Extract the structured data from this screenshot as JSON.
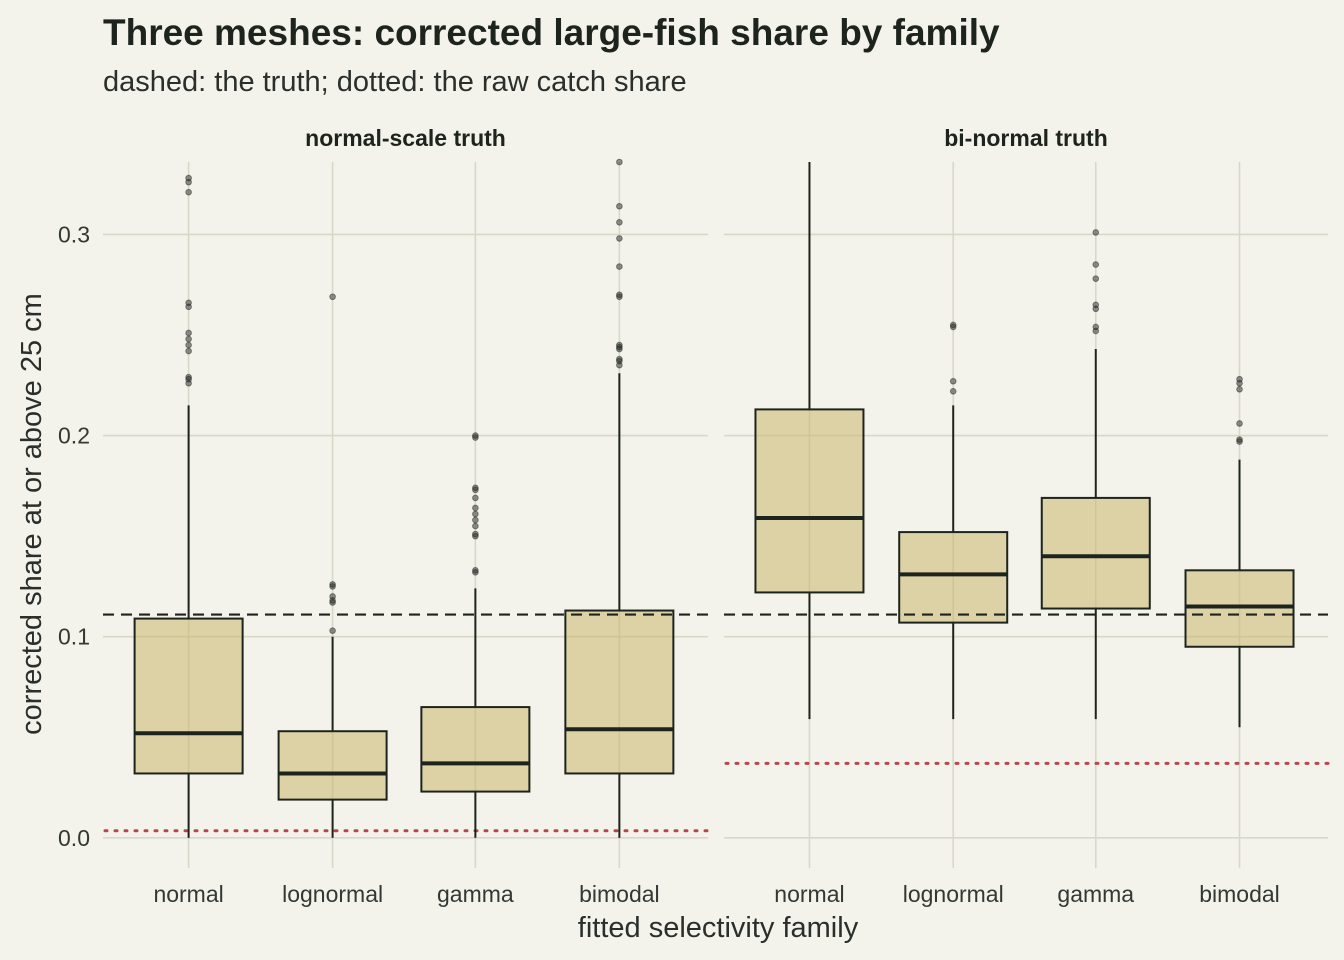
{
  "chart_data": {
    "type": "box",
    "title": "Three meshes: corrected large-fish share by family",
    "subtitle": "dashed: the truth; dotted: the raw catch share",
    "xlabel": "fitted selectivity family",
    "ylabel": "corrected share at or above 25 cm",
    "ylim": [
      -0.015,
      0.336
    ],
    "yticks": [
      0.0,
      0.1,
      0.2,
      0.3
    ],
    "ytick_labels": [
      "0.0",
      "0.1",
      "0.2",
      "0.3"
    ],
    "categories": [
      "normal",
      "lognormal",
      "gamma",
      "bimodal"
    ],
    "grid": true,
    "panels": [
      {
        "title": "normal-scale truth",
        "truth": 0.111,
        "raw_share": 0.0035,
        "boxes": [
          {
            "category": "normal",
            "whisker_low": 0.0,
            "q1": 0.032,
            "median": 0.052,
            "q3": 0.109,
            "whisker_high": 0.215,
            "outliers": [
              0.226,
              0.228,
              0.229,
              0.242,
              0.245,
              0.248,
              0.251,
              0.264,
              0.266,
              0.321,
              0.326,
              0.328
            ]
          },
          {
            "category": "lognormal",
            "whisker_low": 0.0,
            "q1": 0.019,
            "median": 0.032,
            "q3": 0.053,
            "whisker_high": 0.1,
            "outliers": [
              0.103,
              0.117,
              0.118,
              0.12,
              0.125,
              0.126,
              0.269
            ]
          },
          {
            "category": "gamma",
            "whisker_low": 0.0,
            "q1": 0.023,
            "median": 0.037,
            "q3": 0.065,
            "whisker_high": 0.124,
            "outliers": [
              0.132,
              0.133,
              0.15,
              0.151,
              0.155,
              0.158,
              0.161,
              0.164,
              0.169,
              0.173,
              0.174,
              0.199,
              0.2
            ]
          },
          {
            "category": "bimodal",
            "whisker_low": 0.0,
            "q1": 0.032,
            "median": 0.054,
            "q3": 0.113,
            "whisker_high": 0.231,
            "outliers": [
              0.235,
              0.237,
              0.238,
              0.243,
              0.244,
              0.245,
              0.269,
              0.27,
              0.284,
              0.298,
              0.306,
              0.314,
              0.336
            ]
          }
        ]
      },
      {
        "title": "bi-normal truth",
        "truth": 0.111,
        "raw_share": 0.037,
        "boxes": [
          {
            "category": "normal",
            "whisker_low": 0.059,
            "q1": 0.122,
            "median": 0.159,
            "q3": 0.213,
            "whisker_high": 0.336,
            "outliers": []
          },
          {
            "category": "lognormal",
            "whisker_low": 0.059,
            "q1": 0.107,
            "median": 0.131,
            "q3": 0.152,
            "whisker_high": 0.215,
            "outliers": [
              0.222,
              0.227,
              0.254,
              0.255
            ]
          },
          {
            "category": "gamma",
            "whisker_low": 0.059,
            "q1": 0.114,
            "median": 0.14,
            "q3": 0.169,
            "whisker_high": 0.243,
            "outliers": [
              0.252,
              0.254,
              0.263,
              0.265,
              0.278,
              0.285,
              0.301
            ]
          },
          {
            "category": "bimodal",
            "whisker_low": 0.055,
            "q1": 0.095,
            "median": 0.115,
            "q3": 0.133,
            "whisker_high": 0.188,
            "outliers": [
              0.197,
              0.198,
              0.206,
              0.223,
              0.226,
              0.228
            ]
          }
        ]
      }
    ],
    "colors": {
      "background": "#f3f2eb",
      "box_fill": "#c8b86e",
      "box_edge": "#1d241d",
      "grid": "#d8d8c6",
      "truth_line": "#1d241d",
      "raw_line": "#b5484d"
    }
  }
}
